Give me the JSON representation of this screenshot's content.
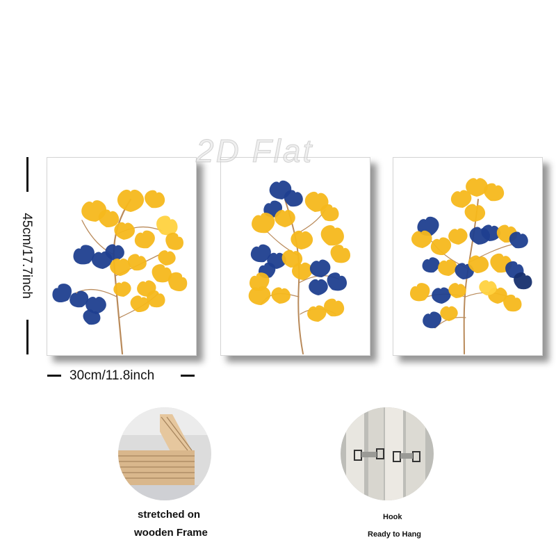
{
  "watermark": "2D Flat",
  "dimensions": {
    "height_label": "45cm/17.7inch",
    "width_label": "30cm/11.8inch"
  },
  "panels": [
    {
      "name": "ginkgo-branch-print-1"
    },
    {
      "name": "ginkgo-branch-print-2"
    },
    {
      "name": "ginkgo-branch-print-3"
    }
  ],
  "colors": {
    "leaf_yellow": "#f5b81c",
    "leaf_yellow_light": "#ffd23f",
    "leaf_blue": "#1f3f8f",
    "leaf_blue_dark": "#17306e",
    "stem_brown": "#b98a5a",
    "wood": "#d6b48a"
  },
  "details": {
    "frame": {
      "line1": "stretched on",
      "line2": "wooden Frame"
    },
    "hook": {
      "line1": "Hook",
      "line2": "Ready to Hang"
    }
  }
}
